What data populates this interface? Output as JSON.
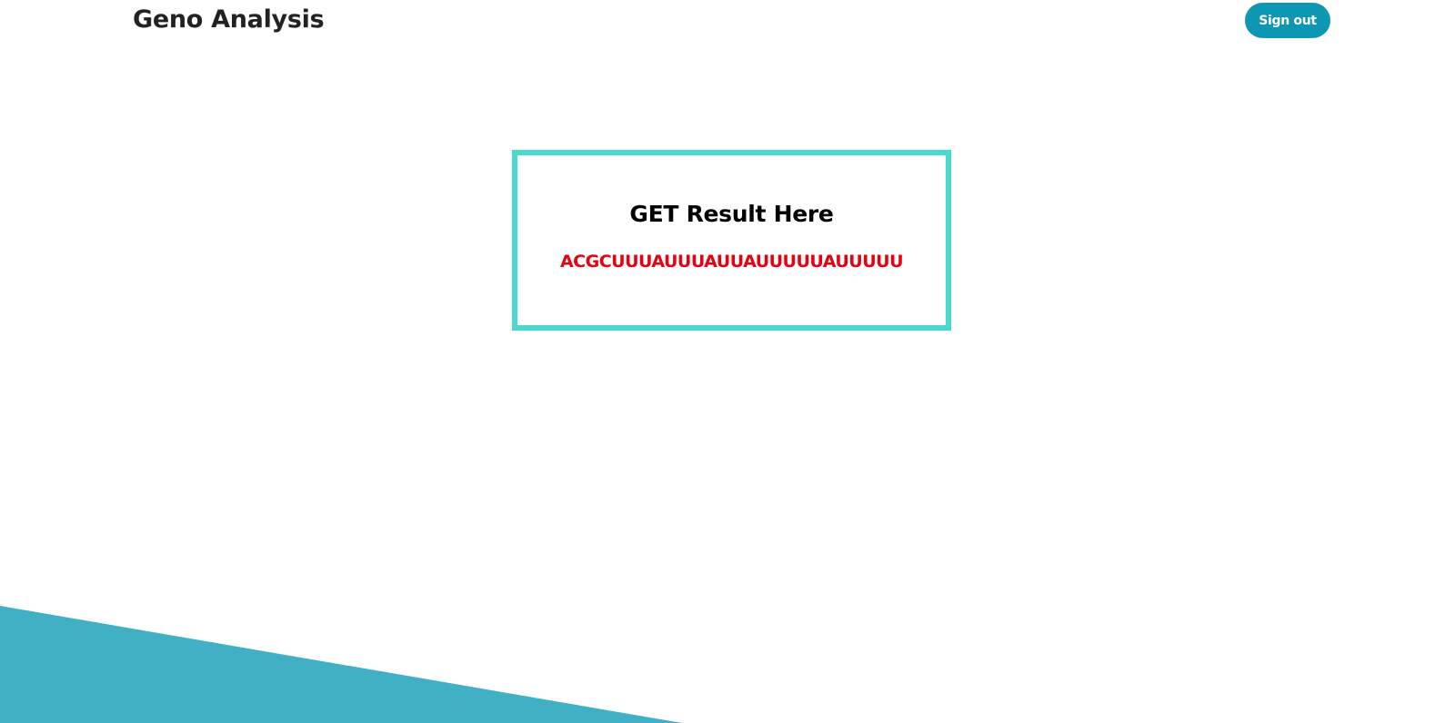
{
  "header": {
    "brand": "Geno Analysis",
    "signout_label": "Sign out"
  },
  "result": {
    "title": "GET Result Here",
    "sequence": "ACGCUUUAUUUAUUAUUUUUAUUUUU"
  },
  "colors": {
    "signout_button": "#0e97b3",
    "card_border": "#48dacd",
    "sequence_text": "#e60012",
    "bottom_shape": "#42b0c4"
  }
}
